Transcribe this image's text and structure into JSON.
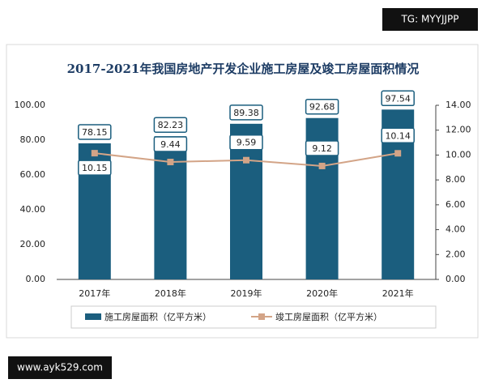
{
  "watermarks": [
    "TG: MYYJJPP",
    "www.ayk529.com"
  ],
  "chart_data": {
    "type": "bar_line",
    "title": "2017-2021年我国房地产开发企业施工房屋及竣工房屋面积情况",
    "categories": [
      "2017年",
      "2018年",
      "2019年",
      "2020年",
      "2021年"
    ],
    "series": [
      {
        "name": "施工房屋面积（亿平方米）",
        "type": "bar",
        "color": "#1b5e7e",
        "values": [
          78.15,
          82.23,
          89.38,
          92.68,
          97.54
        ]
      },
      {
        "name": "竣工房屋面积（亿平方米）",
        "type": "line",
        "axis": "y2",
        "color": "#d3a487",
        "values": [
          10.15,
          9.44,
          9.59,
          9.12,
          10.14
        ]
      }
    ],
    "ylim": [
      0,
      100
    ],
    "yticks": [
      {
        "value": 0,
        "label": "0.00"
      },
      {
        "value": 20,
        "label": "20.00"
      },
      {
        "value": 40,
        "label": "40.00"
      },
      {
        "value": 60,
        "label": "60.00"
      },
      {
        "value": 80,
        "label": "80.00"
      },
      {
        "value": 100,
        "label": "100.00"
      }
    ],
    "y2lim": [
      0,
      14
    ],
    "y2ticks": [
      {
        "value": 0,
        "label": "0.00"
      },
      {
        "value": 2,
        "label": "2.00"
      },
      {
        "value": 4,
        "label": "4.00"
      },
      {
        "value": 6,
        "label": "6.00"
      },
      {
        "value": 8,
        "label": "8.00"
      },
      {
        "value": 10,
        "label": "10.00"
      },
      {
        "value": 12,
        "label": "12.00"
      },
      {
        "value": 14,
        "label": "14.00"
      }
    ],
    "grid": false,
    "legend": "bottom"
  }
}
